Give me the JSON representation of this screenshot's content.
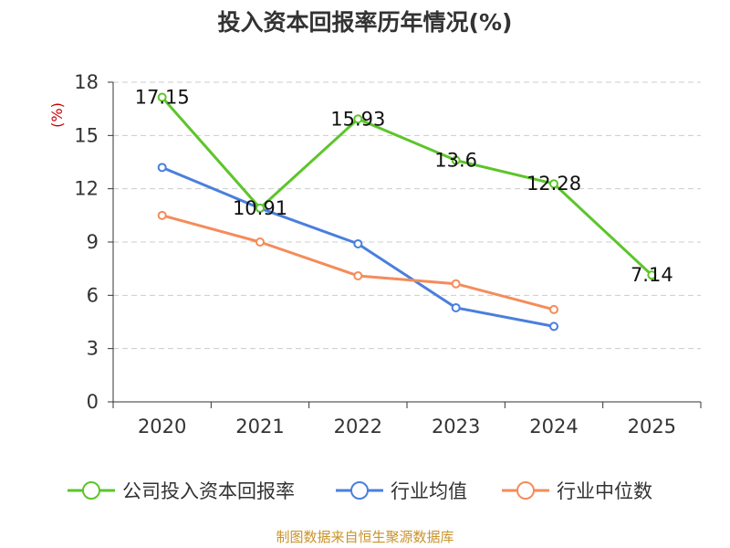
{
  "chart_data": {
    "type": "line",
    "title": "投入资本回报率历年情况(%)",
    "ylabel": "(%)",
    "categories": [
      "2020",
      "2021",
      "2022",
      "2023",
      "2024",
      "2025"
    ],
    "ylim": [
      0,
      18
    ],
    "yticks": [
      0,
      3,
      6,
      9,
      12,
      15,
      18
    ],
    "grid": true,
    "legend_position": "bottom",
    "series": [
      {
        "name": "公司投入资本回报率",
        "color": "#5cc52a",
        "values": [
          17.15,
          10.91,
          15.93,
          13.6,
          12.28,
          7.14
        ],
        "labels": [
          "17.15",
          "10.91",
          "15.93",
          "13.6",
          "12.28",
          "7.14"
        ]
      },
      {
        "name": "行业均值",
        "color": "#4a7fdc",
        "values": [
          13.2,
          10.9,
          8.9,
          5.3,
          4.25,
          null
        ]
      },
      {
        "name": "行业中位数",
        "color": "#f48c5a",
        "values": [
          10.5,
          9.0,
          7.1,
          6.65,
          5.2,
          null
        ]
      }
    ]
  },
  "source": "制图数据来自恒生聚源数据库"
}
